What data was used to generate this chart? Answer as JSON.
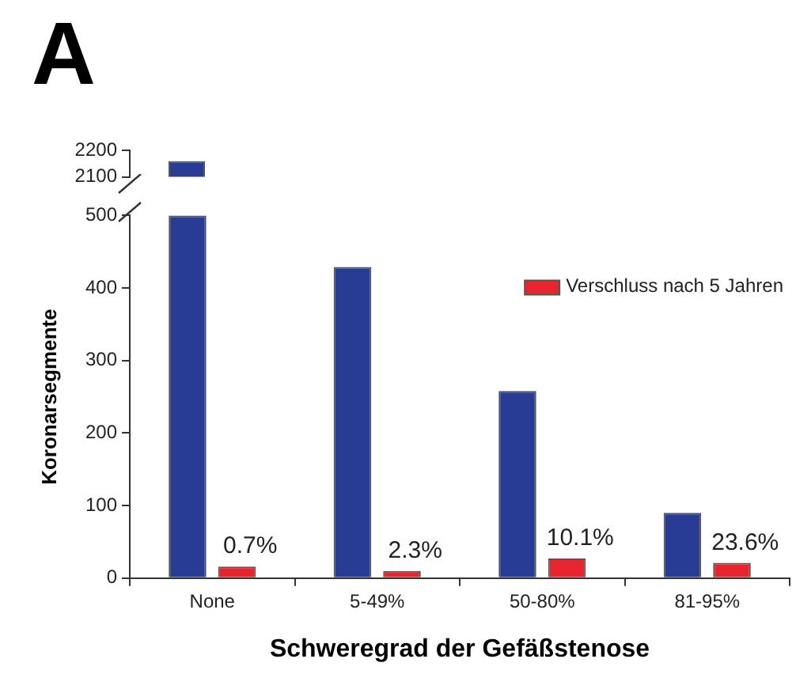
{
  "chart_data": [
    {
      "type": "bar",
      "title": "A",
      "categories": [
        null
      ],
      "ylim": [
        2100,
        2200
      ],
      "yticks": [
        2100,
        2200
      ],
      "tick_labels": "y",
      "series": [
        {
          "color": "#283c96",
          "values": [
            2160
          ]
        }
      ]
    },
    {
      "type": "bar",
      "xlabel": "Schweregrad der Gefäßstenose",
      "ylabel": "Koronarsegmente",
      "categories": [
        "None",
        "5-49%",
        "50-80%",
        "81-95%"
      ],
      "ylim": [
        0,
        500
      ],
      "yticks": [
        0,
        100,
        200,
        300,
        400,
        500
      ],
      "legend": "top right",
      "annotations": [
        {
          "text": "0.7%",
          "x": "None",
          "y": 16
        },
        {
          "text": "2.3%",
          "x": "5-49%",
          "y": 10
        },
        {
          "text": "10.1%",
          "x": "50-80%",
          "y": 27
        },
        {
          "text": "23.6%",
          "x": "81-95%",
          "y": 21
        }
      ],
      "series": [
        {
          "color": "#283c96",
          "values": [
            500,
            429,
            258,
            90
          ]
        },
        {
          "name": "Verschluss nach 5 Jahren",
          "color": "#e8242e",
          "values": [
            16,
            10,
            27,
            21
          ]
        }
      ]
    }
  ]
}
